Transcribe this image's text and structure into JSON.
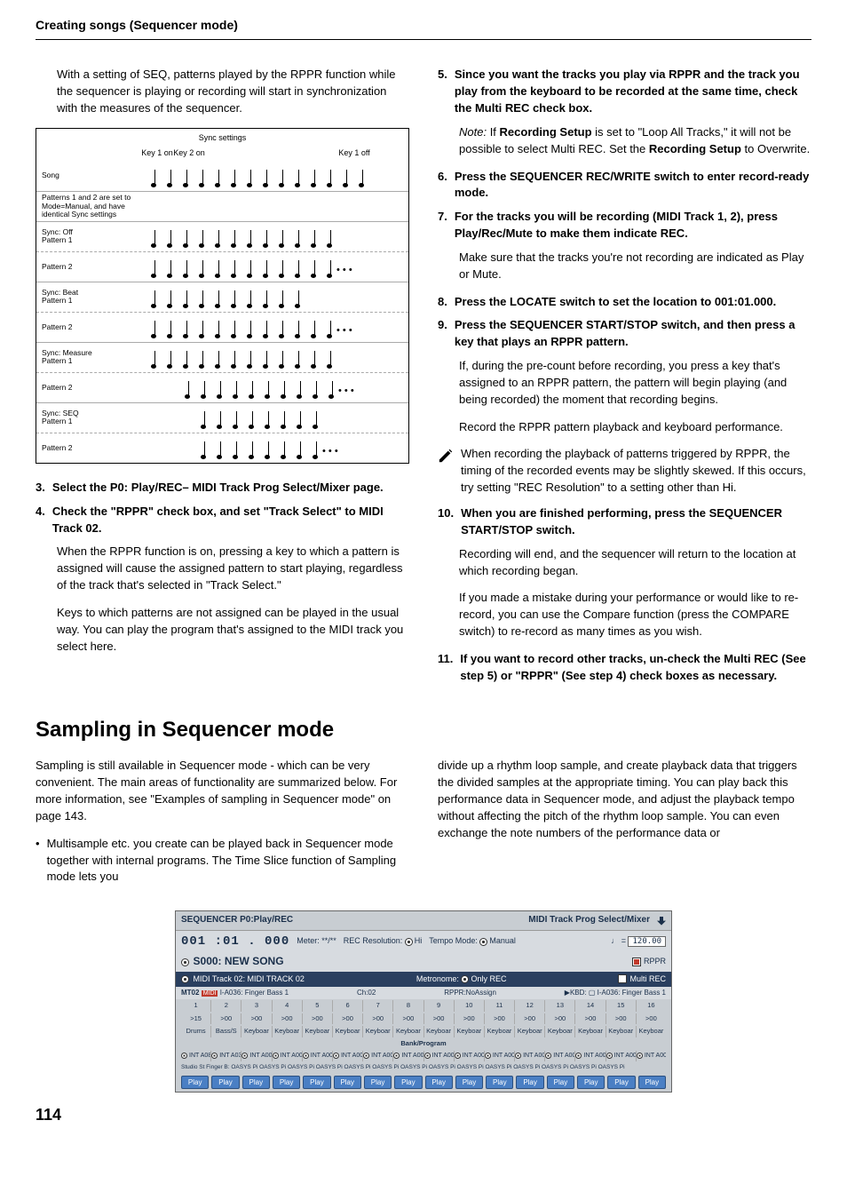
{
  "header": {
    "title": "Creating songs (Sequencer mode)"
  },
  "page_number": "114",
  "left_intro": "With a setting of SEQ, patterns played by the RPPR function while the sequencer is playing or recording will start in synchronization with the measures of the sequencer.",
  "sync_figure": {
    "title": "Sync settings",
    "key_labels": {
      "k1on": "Key 1 on",
      "k2on": "Key 2 on",
      "k1off": "Key 1 off"
    },
    "rows": [
      {
        "label": "Song",
        "notes": 14
      },
      {
        "label": "Patterns 1 and 2 are set to Mode=Manual, and have identical Sync settings",
        "notes": 0
      },
      {
        "label": "Sync: Off\nPattern 1",
        "notes": 12
      },
      {
        "label": "Pattern 2",
        "notes": 12,
        "dots": true
      },
      {
        "label": "Sync: Beat\nPattern 1",
        "notes": 10
      },
      {
        "label": "Pattern 2",
        "notes": 12,
        "dots": true
      },
      {
        "label": "Sync: Measure\nPattern 1",
        "notes": 12
      },
      {
        "label": "Pattern 2",
        "notes": 10,
        "dots": true,
        "offset": 2
      },
      {
        "label": "Sync: SEQ\nPattern 1",
        "notes": 8,
        "offset": 3
      },
      {
        "label": "Pattern 2",
        "notes": 8,
        "dots": true,
        "offset": 3
      }
    ]
  },
  "left_steps": [
    {
      "num": "3.",
      "text": "Select the P0: Play/REC– MIDI Track Prog Select/Mixer page."
    },
    {
      "num": "4.",
      "text": "Check the \"RPPR\" check box, and set \"Track Select\" to MIDI Track 02."
    }
  ],
  "left_body": [
    "When the RPPR function is on, pressing a key to which a pattern is assigned will cause the assigned pattern to start playing, regardless of the track that's selected in \"Track Select.\"",
    "Keys to which patterns are not assigned can be played in the usual way. You can play the program that's assigned to the MIDI track you select here."
  ],
  "right_steps": [
    {
      "num": "5.",
      "bold": true,
      "text": "Since you want the tracks you play via RPPR and the track you play from the keyboard to be recorded at the same time, check the Multi REC check box."
    },
    {
      "type": "note_para",
      "parts": [
        {
          "italic": true,
          "text": "Note: "
        },
        {
          "text": "If "
        },
        {
          "bold": true,
          "text": "Recording Setup"
        },
        {
          "text": " is set to \"Loop All Tracks,\" it will not be possible to select Multi REC. Set the "
        },
        {
          "bold": true,
          "text": "Recording Setup"
        },
        {
          "text": " to Overwrite."
        }
      ]
    },
    {
      "num": "6.",
      "bold": true,
      "text": "Press the SEQUENCER REC/WRITE switch to enter record-ready mode."
    },
    {
      "num": "7.",
      "bold": true,
      "text": "For the tracks you will be recording (MIDI Track 1, 2), press Play/Rec/Mute to make them indicate REC."
    },
    {
      "type": "para",
      "text": "Make sure that the tracks you're not recording are indicated as Play or Mute."
    },
    {
      "num": "8.",
      "bold": true,
      "text": "Press the LOCATE switch to set the location to 001:01.000."
    },
    {
      "num": "9.",
      "bold": true,
      "text": "Press the SEQUENCER START/STOP switch, and then press a key that plays an RPPR pattern."
    },
    {
      "type": "para",
      "text": "If, during the pre-count before recording, you press a key that's assigned to an RPPR pattern, the pattern will begin playing (and being recorded) the moment that recording begins."
    },
    {
      "type": "para",
      "text": "Record the RPPR pattern playback and keyboard performance."
    },
    {
      "type": "pencil",
      "text": "When recording the playback of patterns triggered by RPPR, the timing of the recorded events may be slightly skewed. If this occurs, try setting \"REC Resolution\" to a setting other than Hi."
    },
    {
      "num": "10.",
      "bold": true,
      "text": "When you are finished performing, press the SEQUENCER START/STOP switch."
    },
    {
      "type": "para",
      "text": "Recording will end, and the sequencer will return to the location at which recording began."
    },
    {
      "type": "para",
      "text": "If you made a mistake during your performance or would like to re-record, you can use the Compare function (press the COMPARE switch) to re-record as many times as you wish."
    },
    {
      "num": "11.",
      "bold": true,
      "text": "If you want to record other tracks, un-check the Multi REC (See step 5) or \"RPPR\" (See step 4) check boxes as necessary."
    }
  ],
  "section_heading": "Sampling in Sequencer mode",
  "bottom_left": "Sampling is still available in Sequencer mode - which can be very convenient. The main areas of functionality are summarized below. For more information, see \"Examples of sampling in Sequencer mode\" on page 143.",
  "bottom_bullet": "Multisample etc. you create can be played back in Sequencer mode together with internal programs. The Time Slice function of Sampling mode lets you",
  "bottom_right": "divide up a rhythm loop sample, and create playback data that triggers the divided samples at the appropriate timing. You can play back this performance data in Sequencer mode, and adjust the playback tempo without affecting the pitch of the rhythm loop sample. You can even exchange the note numbers of the performance data or",
  "screenshot": {
    "title_left": "SEQUENCER P0:Play/REC",
    "title_right": "MIDI Track Prog Select/Mixer",
    "counter": "001 :01 . 000",
    "meter_label": "Meter: **/**",
    "rec_res_label": "REC Resolution:",
    "rec_res_val": "Hi",
    "tempo_mode_label": "Tempo Mode:",
    "tempo_mode_val": "Manual",
    "tempo_val": "120.00",
    "song_name": "S000: NEW SONG",
    "rppr_label": "RPPR",
    "track_label": "MIDI Track 02: MIDI TRACK 02",
    "metronome_label": "Metronome:",
    "metronome_val": "Only REC",
    "multi_label": "Multi REC",
    "grid_left": "MT02",
    "grid_mid1": "I-A036: Finger Bass 1",
    "grid_ch": "Ch:02",
    "grid_rppr": "RPPR:NoAssign",
    "grid_kbd": "▶KBD: ▢ I-A036: Finger Bass 1",
    "track_nums": [
      "1",
      "2",
      "3",
      "4",
      "5",
      "6",
      "7",
      "8",
      "9",
      "10",
      "11",
      "12",
      "13",
      "14",
      "15",
      "16"
    ],
    "vol_row": [
      ">15",
      ">00",
      ">00",
      ">00",
      ">00",
      ">00",
      ">00",
      ">00",
      ">00",
      ">00",
      ">00",
      ">00",
      ">00",
      ">00",
      ">00",
      ">00"
    ],
    "name_row": [
      "Drums",
      "Bass/S",
      "Keyboar",
      "Keyboar",
      "Keyboar",
      "Keyboar",
      "Keyboar",
      "Keyboar",
      "Keyboar",
      "Keyboar",
      "Keyboar",
      "Keyboar",
      "Keyboar",
      "Keyboar",
      "Keyboar",
      "Keyboar"
    ],
    "bank_label": "Bank/Program",
    "bp_cells": [
      "INT A084",
      "INT A036",
      "INT A000",
      "INT A000",
      "INT A000",
      "INT A000",
      "INT A000",
      "INT A000",
      "INT A000",
      "INT A000",
      "INT A000",
      "INT A000",
      "INT A000",
      "INT A000",
      "INT A000",
      "INT A000"
    ],
    "studio_row": "Studio St Finger B: OASYS Pi OASYS Pi OASYS Pi OASYS Pi OASYS Pi OASYS Pi OASYS Pi OASYS Pi OASYS Pi OASYS Pi OASYS Pi OASYS Pi OASYS Pi OASYS Pi",
    "play_label": "Play"
  }
}
